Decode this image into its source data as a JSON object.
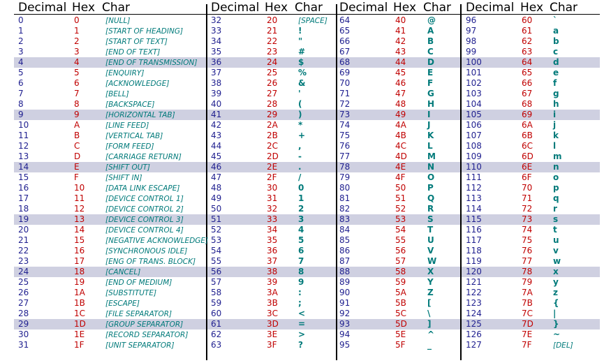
{
  "headers": [
    "Decimal",
    "Hex",
    "Char"
  ],
  "colors": {
    "decimal": "#1f1f8f",
    "hex": "#c00000",
    "char": "#007a7a",
    "band": "#cfd0e1"
  },
  "chars": [
    "[NULL]",
    "[START OF HEADING]",
    "[START OF TEXT]",
    "[END OF TEXT]",
    "[END OF TRANSMISSION]",
    "[ENQUIRY]",
    "[ACKNOWLEDGE]",
    "[BELL]",
    "[BACKSPACE]",
    "[HORIZONTAL TAB]",
    "[LINE FEED]",
    "[VERTICAL TAB]",
    "[FORM FEED]",
    "[CARRIAGE RETURN]",
    "[SHIFT OUT]",
    "[SHIFT IN]",
    "[DATA LINK ESCAPE]",
    "[DEVICE CONTROL 1]",
    "[DEVICE CONTROL 2]",
    "[DEVICE CONTROL 3]",
    "[DEVICE CONTROL 4]",
    "[NEGATIVE ACKNOWLEDGE]",
    "[SYNCHRONOUS IDLE]",
    "[ENG OF TRANS. BLOCK]",
    "[CANCEL]",
    "[END OF MEDIUM]",
    "[SUBSTITUTE]",
    "[ESCAPE]",
    "[FILE SEPARATOR]",
    "[GROUP SEPARATOR]",
    "[RECORD SEPARATOR]",
    "[UNIT SEPARATOR]",
    "[SPACE]",
    "!",
    "\"",
    "#",
    "$",
    "%",
    "&",
    "'",
    "(",
    ")",
    "*",
    "+",
    ",",
    "-",
    ".",
    "/",
    "0",
    "1",
    "2",
    "3",
    "4",
    "5",
    "6",
    "7",
    "8",
    "9",
    ":",
    ";",
    "<",
    "=",
    ">",
    "?",
    "@",
    "A",
    "B",
    "C",
    "D",
    "E",
    "F",
    "G",
    "H",
    "I",
    "J",
    "K",
    "L",
    "M",
    "N",
    "O",
    "P",
    "Q",
    "R",
    "S",
    "T",
    "U",
    "V",
    "W",
    "X",
    "Y",
    "Z",
    "[",
    "\\",
    "]",
    "^",
    "_",
    "`",
    "a",
    "b",
    "c",
    "d",
    "e",
    "f",
    "g",
    "h",
    "i",
    "j",
    "k",
    "l",
    "m",
    "n",
    "o",
    "p",
    "q",
    "r",
    "s",
    "t",
    "u",
    "v",
    "w",
    "x",
    "y",
    "z",
    "{",
    "|",
    "}",
    "~",
    "[DEL]"
  ]
}
